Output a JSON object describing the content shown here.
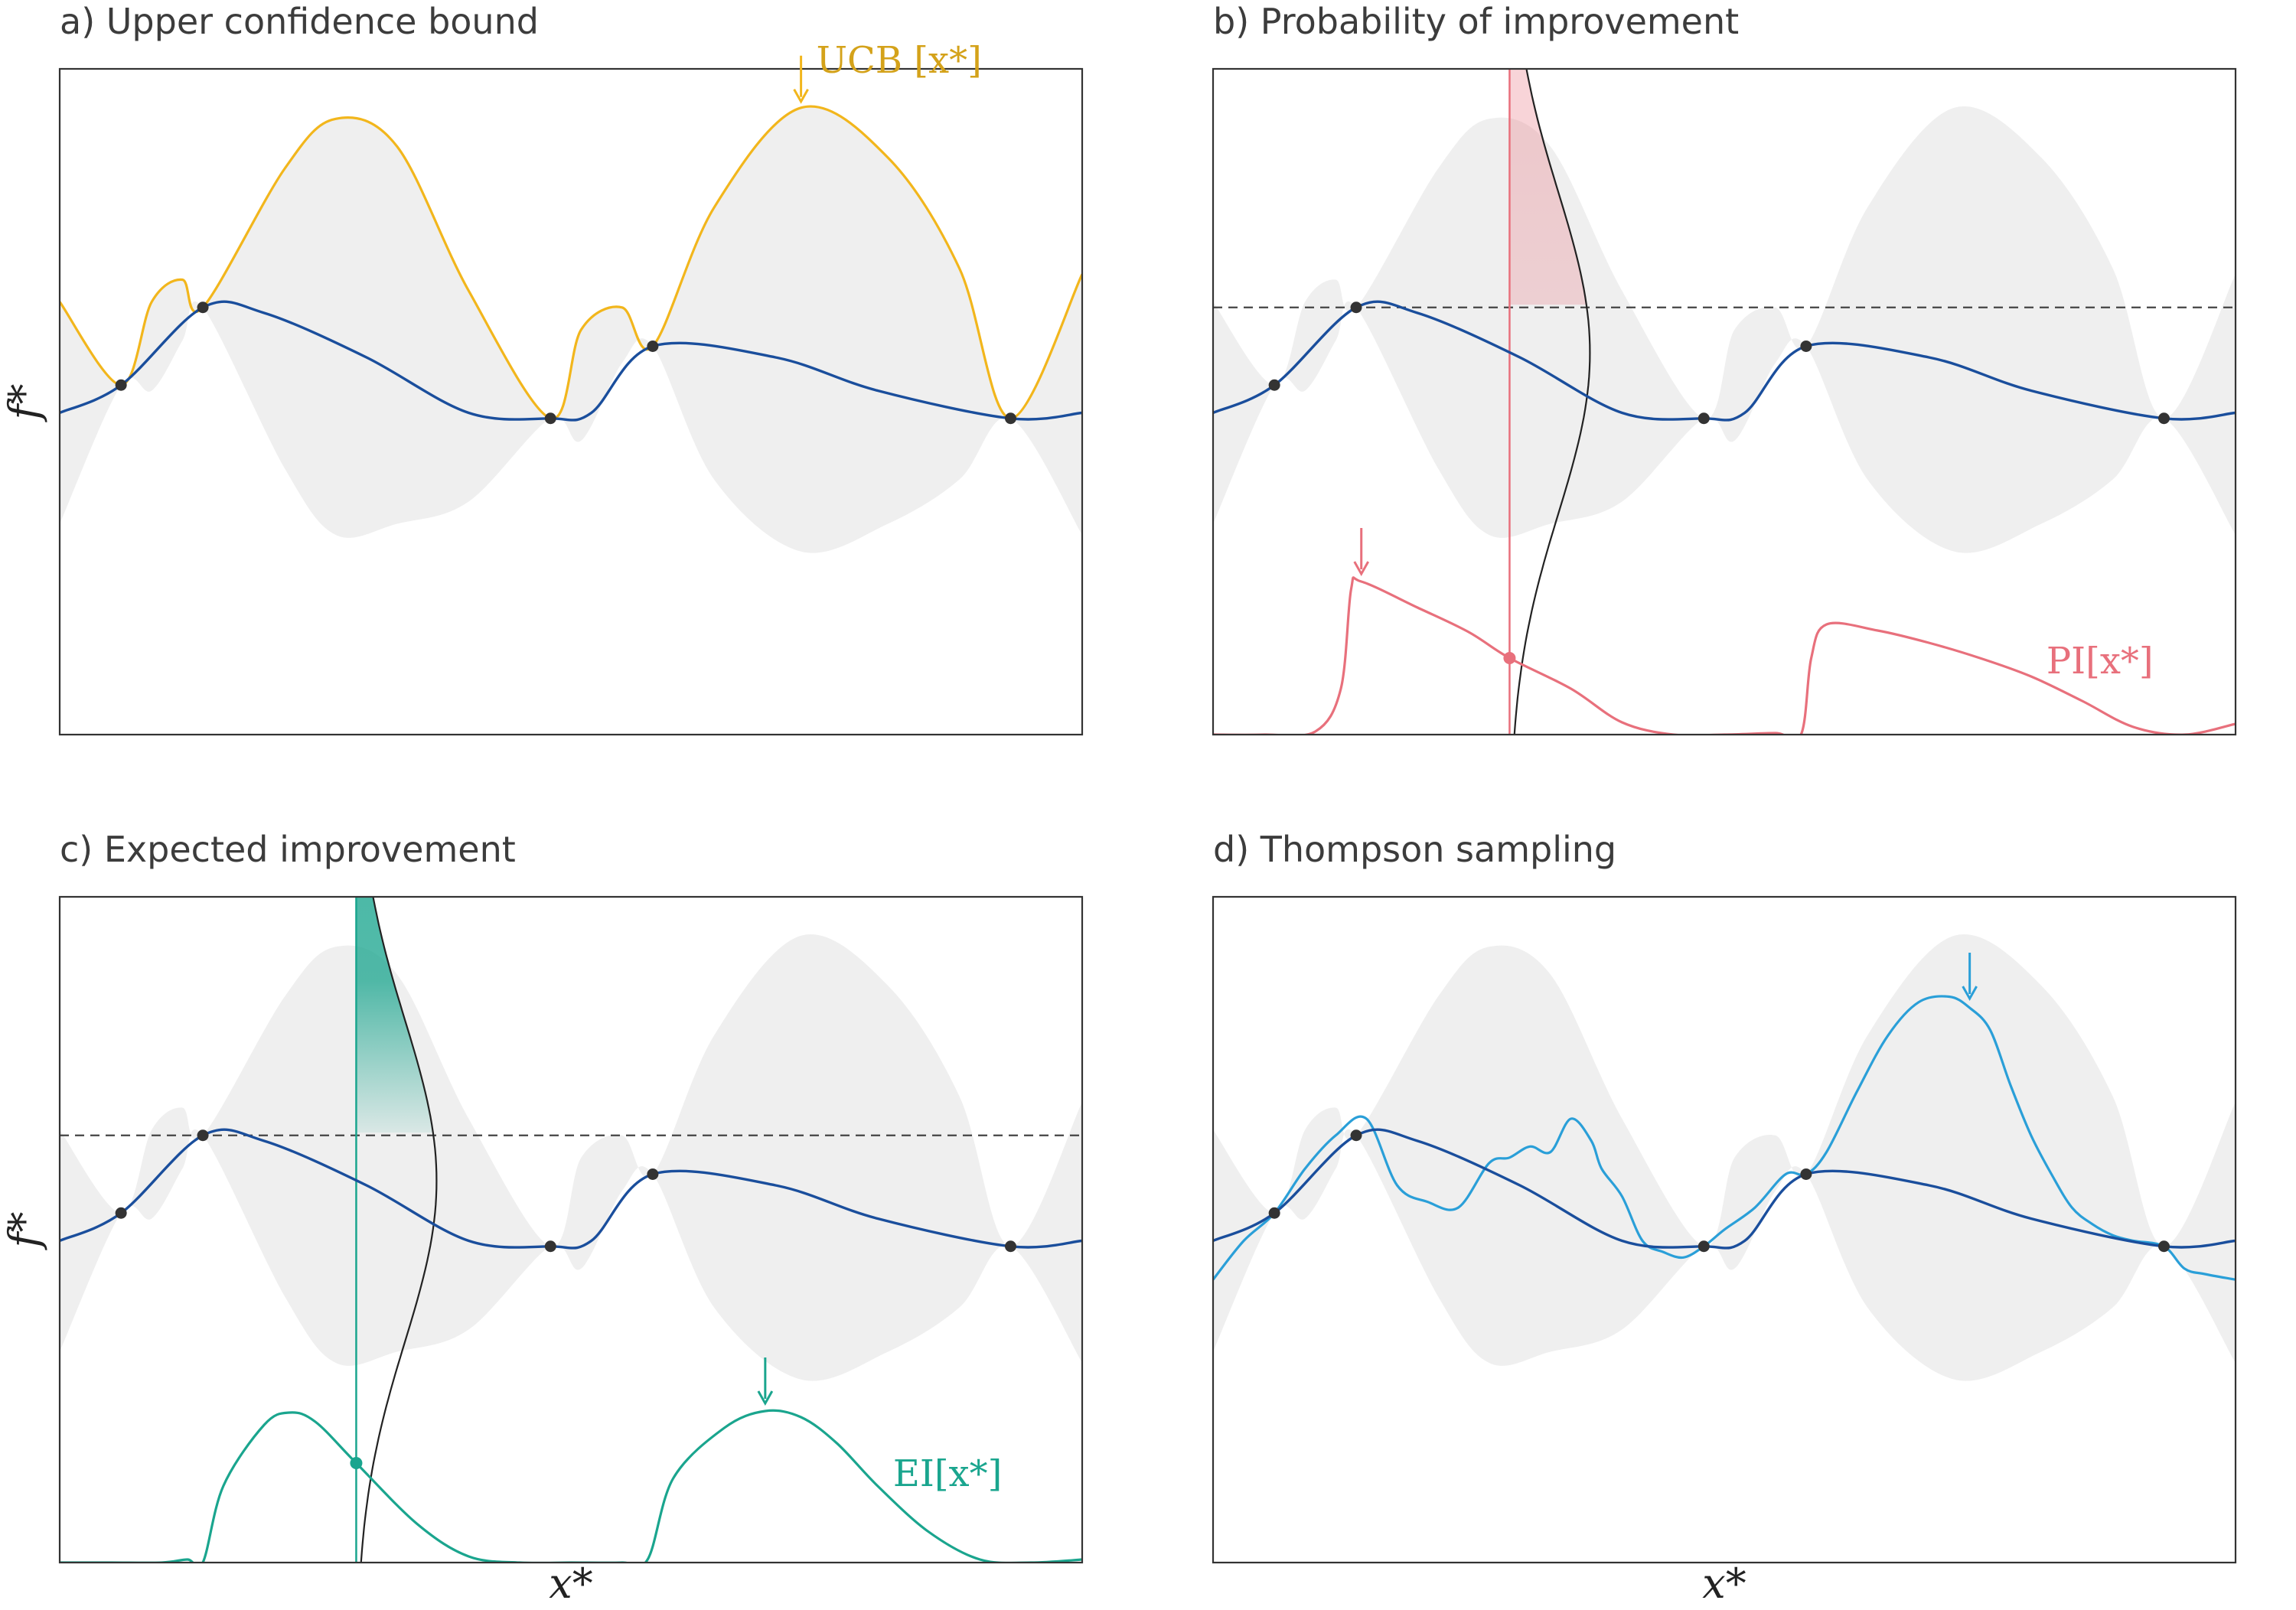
{
  "figure": {
    "y_axis_label": "f*",
    "x_axis_label": "x*"
  },
  "colors": {
    "mean": "#1a4e9c",
    "band": "#efefef",
    "ucb": "#f2b61c",
    "ucb_label": "#d4a21a",
    "pi": "#e8707c",
    "ei": "#1aa58e",
    "thompson": "#2a9fd8",
    "points": "#333333",
    "frame": "#333333"
  },
  "chart_data": [
    {
      "id": "a",
      "type": "line",
      "title": "a) Upper confidence bound",
      "xlim": [
        0,
        1
      ],
      "ylim": [
        -3,
        3
      ],
      "observations": {
        "x": [
          0.06,
          0.14,
          0.48,
          0.58,
          0.93
        ],
        "y": [
          0.15,
          0.85,
          -0.15,
          0.5,
          -0.15
        ]
      },
      "series": [
        {
          "role": "mean",
          "x": [
            0,
            0.06,
            0.14,
            0.2,
            0.3,
            0.4,
            0.48,
            0.52,
            0.58,
            0.7,
            0.8,
            0.93,
            1.0
          ],
          "y": [
            -0.1,
            0.15,
            0.85,
            0.8,
            0.4,
            -0.1,
            -0.15,
            -0.1,
            0.5,
            0.4,
            0.1,
            -0.15,
            -0.1
          ]
        },
        {
          "role": "upper",
          "x": [
            0,
            0.06,
            0.09,
            0.12,
            0.14,
            0.22,
            0.27,
            0.33,
            0.4,
            0.48,
            0.51,
            0.55,
            0.58,
            0.64,
            0.725,
            0.81,
            0.88,
            0.93,
            1.0
          ],
          "y": [
            0.9,
            0.15,
            0.9,
            1.1,
            0.85,
            2.1,
            2.55,
            2.3,
            1.0,
            -0.15,
            0.65,
            0.85,
            0.5,
            1.75,
            2.65,
            2.2,
            1.2,
            -0.15,
            1.15
          ]
        },
        {
          "role": "lower",
          "x": [
            0,
            0.06,
            0.09,
            0.12,
            0.14,
            0.22,
            0.27,
            0.33,
            0.4,
            0.48,
            0.51,
            0.55,
            0.58,
            0.64,
            0.725,
            0.81,
            0.88,
            0.93,
            1.0
          ],
          "y": [
            -1.1,
            0.15,
            0.1,
            0.55,
            0.85,
            -0.6,
            -1.2,
            -1.1,
            -0.9,
            -0.15,
            -0.35,
            0.35,
            0.5,
            -0.7,
            -1.35,
            -1.1,
            -0.7,
            -0.15,
            -1.2
          ]
        },
        {
          "role": "ucb",
          "name": "UCB [x*]",
          "x": [
            0,
            0.06,
            0.09,
            0.12,
            0.14,
            0.22,
            0.27,
            0.33,
            0.4,
            0.48,
            0.51,
            0.55,
            0.58,
            0.64,
            0.725,
            0.81,
            0.88,
            0.93,
            1.0
          ],
          "y": [
            0.9,
            0.15,
            0.9,
            1.1,
            0.85,
            2.1,
            2.55,
            2.3,
            1.0,
            -0.15,
            0.65,
            0.85,
            0.5,
            1.75,
            2.65,
            2.2,
            1.2,
            -0.15,
            1.15
          ]
        }
      ],
      "annotations": [
        {
          "type": "arrow",
          "x": 0.725,
          "label": "UCB [x*]"
        }
      ]
    },
    {
      "id": "b",
      "type": "line",
      "title": "b) Probability of improvement",
      "xlim": [
        0,
        1
      ],
      "ylim": [
        -3,
        3
      ],
      "observations": {
        "x": [
          0.06,
          0.14,
          0.48,
          0.58,
          0.93
        ],
        "y": [
          0.15,
          0.85,
          -0.15,
          0.5,
          -0.15
        ]
      },
      "best_value": 0.85,
      "series": [
        {
          "role": "mean",
          "x": [
            0,
            0.06,
            0.14,
            0.2,
            0.3,
            0.4,
            0.48,
            0.52,
            0.58,
            0.7,
            0.8,
            0.93,
            1.0
          ],
          "y": [
            -0.1,
            0.15,
            0.85,
            0.8,
            0.4,
            -0.1,
            -0.15,
            -0.1,
            0.5,
            0.4,
            0.1,
            -0.15,
            -0.1
          ]
        },
        {
          "role": "upper",
          "x": [
            0,
            0.06,
            0.09,
            0.12,
            0.14,
            0.22,
            0.27,
            0.33,
            0.4,
            0.48,
            0.51,
            0.55,
            0.58,
            0.64,
            0.725,
            0.81,
            0.88,
            0.93,
            1.0
          ],
          "y": [
            0.9,
            0.15,
            0.9,
            1.1,
            0.85,
            2.1,
            2.55,
            2.3,
            1.0,
            -0.15,
            0.65,
            0.85,
            0.5,
            1.75,
            2.65,
            2.2,
            1.2,
            -0.15,
            1.15
          ]
        },
        {
          "role": "lower",
          "x": [
            0,
            0.06,
            0.09,
            0.12,
            0.14,
            0.22,
            0.27,
            0.33,
            0.4,
            0.48,
            0.51,
            0.55,
            0.58,
            0.64,
            0.725,
            0.81,
            0.88,
            0.93,
            1.0
          ],
          "y": [
            -1.1,
            0.15,
            0.1,
            0.55,
            0.85,
            -0.6,
            -1.2,
            -1.1,
            -0.9,
            -0.15,
            -0.35,
            0.35,
            0.5,
            -0.7,
            -1.35,
            -1.1,
            -0.7,
            -0.15,
            -1.2
          ]
        },
        {
          "role": "pi",
          "name": "PI[x*]",
          "x": [
            0,
            0.05,
            0.1,
            0.125,
            0.135,
            0.145,
            0.2,
            0.25,
            0.29,
            0.35,
            0.4,
            0.45,
            0.5,
            0.55,
            0.575,
            0.585,
            0.6,
            0.65,
            0.7,
            0.75,
            0.8,
            0.85,
            0.9,
            0.95,
            1.0
          ],
          "y": [
            0,
            0,
            0.02,
            0.3,
            0.95,
            1.0,
            0.83,
            0.67,
            0.5,
            0.3,
            0.08,
            0.0,
            0.0,
            0.01,
            0.0,
            0.5,
            0.72,
            0.68,
            0.6,
            0.5,
            0.38,
            0.22,
            0.05,
            0.0,
            0.07
          ]
        }
      ],
      "query": {
        "x": 0.29,
        "sigma": 1.45
      },
      "annotations": [
        {
          "type": "arrow",
          "x": 0.145,
          "label": "PI[x*]"
        }
      ]
    },
    {
      "id": "c",
      "type": "line",
      "title": "c) Expected improvement",
      "xlim": [
        0,
        1
      ],
      "ylim": [
        -3,
        3
      ],
      "observations": {
        "x": [
          0.06,
          0.14,
          0.48,
          0.58,
          0.93
        ],
        "y": [
          0.15,
          0.85,
          -0.15,
          0.5,
          -0.15
        ]
      },
      "best_value": 0.85,
      "series": [
        {
          "role": "mean",
          "x": [
            0,
            0.06,
            0.14,
            0.2,
            0.3,
            0.4,
            0.48,
            0.52,
            0.58,
            0.7,
            0.8,
            0.93,
            1.0
          ],
          "y": [
            -0.1,
            0.15,
            0.85,
            0.8,
            0.4,
            -0.1,
            -0.15,
            -0.1,
            0.5,
            0.4,
            0.1,
            -0.15,
            -0.1
          ]
        },
        {
          "role": "upper",
          "x": [
            0,
            0.06,
            0.09,
            0.12,
            0.14,
            0.22,
            0.27,
            0.33,
            0.4,
            0.48,
            0.51,
            0.55,
            0.58,
            0.64,
            0.725,
            0.81,
            0.88,
            0.93,
            1.0
          ],
          "y": [
            0.9,
            0.15,
            0.9,
            1.1,
            0.85,
            2.1,
            2.55,
            2.3,
            1.0,
            -0.15,
            0.65,
            0.85,
            0.5,
            1.75,
            2.65,
            2.2,
            1.2,
            -0.15,
            1.15
          ]
        },
        {
          "role": "lower",
          "x": [
            0,
            0.06,
            0.09,
            0.12,
            0.14,
            0.22,
            0.27,
            0.33,
            0.4,
            0.48,
            0.51,
            0.55,
            0.58,
            0.64,
            0.725,
            0.81,
            0.88,
            0.93,
            1.0
          ],
          "y": [
            -1.1,
            0.15,
            0.1,
            0.55,
            0.85,
            -0.6,
            -1.2,
            -1.1,
            -0.9,
            -0.15,
            -0.35,
            0.35,
            0.5,
            -0.7,
            -1.35,
            -1.1,
            -0.7,
            -0.15,
            -1.2
          ]
        },
        {
          "role": "ei",
          "name": "EI[x*]",
          "x": [
            0,
            0.05,
            0.1,
            0.125,
            0.14,
            0.16,
            0.2,
            0.225,
            0.25,
            0.29,
            0.35,
            0.4,
            0.45,
            0.5,
            0.55,
            0.575,
            0.6,
            0.65,
            0.69,
            0.725,
            0.76,
            0.8,
            0.85,
            0.9,
            0.95,
            1.0
          ],
          "y": [
            0,
            0,
            0.0,
            0.02,
            0.0,
            0.5,
            0.9,
            0.98,
            0.92,
            0.65,
            0.25,
            0.04,
            0.0,
            0.0,
            0.0,
            0.02,
            0.55,
            0.88,
            0.99,
            0.95,
            0.78,
            0.5,
            0.2,
            0.02,
            0.0,
            0.02
          ]
        }
      ],
      "query": {
        "x": 0.29,
        "sigma": 1.45
      },
      "annotations": [
        {
          "type": "arrow",
          "x": 0.69,
          "label": "EI[x*]"
        }
      ]
    },
    {
      "id": "d",
      "type": "line",
      "title": "d) Thompson sampling",
      "xlim": [
        0,
        1
      ],
      "ylim": [
        -3,
        3
      ],
      "observations": {
        "x": [
          0.06,
          0.14,
          0.48,
          0.58,
          0.93
        ],
        "y": [
          0.15,
          0.85,
          -0.15,
          0.5,
          -0.15
        ]
      },
      "series": [
        {
          "role": "mean",
          "x": [
            0,
            0.06,
            0.14,
            0.2,
            0.3,
            0.4,
            0.48,
            0.52,
            0.58,
            0.7,
            0.8,
            0.93,
            1.0
          ],
          "y": [
            -0.1,
            0.15,
            0.85,
            0.8,
            0.4,
            -0.1,
            -0.15,
            -0.1,
            0.5,
            0.4,
            0.1,
            -0.15,
            -0.1
          ]
        },
        {
          "role": "upper",
          "x": [
            0,
            0.06,
            0.09,
            0.12,
            0.14,
            0.22,
            0.27,
            0.33,
            0.4,
            0.48,
            0.51,
            0.55,
            0.58,
            0.64,
            0.725,
            0.81,
            0.88,
            0.93,
            1.0
          ],
          "y": [
            0.9,
            0.15,
            0.9,
            1.1,
            0.85,
            2.1,
            2.55,
            2.3,
            1.0,
            -0.15,
            0.65,
            0.85,
            0.5,
            1.75,
            2.65,
            2.2,
            1.2,
            -0.15,
            1.15
          ]
        },
        {
          "role": "lower",
          "x": [
            0,
            0.06,
            0.09,
            0.12,
            0.14,
            0.22,
            0.27,
            0.33,
            0.4,
            0.48,
            0.51,
            0.55,
            0.58,
            0.64,
            0.725,
            0.81,
            0.88,
            0.93,
            1.0
          ],
          "y": [
            -1.1,
            0.15,
            0.1,
            0.55,
            0.85,
            -0.6,
            -1.2,
            -1.1,
            -0.9,
            -0.15,
            -0.35,
            0.35,
            0.5,
            -0.7,
            -1.35,
            -1.1,
            -0.7,
            -0.15,
            -1.2
          ]
        },
        {
          "role": "sample",
          "x": [
            0,
            0.03,
            0.06,
            0.09,
            0.12,
            0.15,
            0.18,
            0.21,
            0.24,
            0.27,
            0.29,
            0.31,
            0.33,
            0.35,
            0.37,
            0.38,
            0.4,
            0.42,
            0.44,
            0.46,
            0.48,
            0.5,
            0.53,
            0.56,
            0.58,
            0.6,
            0.63,
            0.66,
            0.69,
            0.72,
            0.74,
            0.76,
            0.78,
            0.8,
            0.82,
            0.84,
            0.86,
            0.88,
            0.9,
            0.93,
            0.95,
            0.97,
            1.0
          ],
          "y": [
            -0.45,
            -0.1,
            0.15,
            0.55,
            0.85,
            1.0,
            0.4,
            0.25,
            0.2,
            0.6,
            0.65,
            0.75,
            0.7,
            1.0,
            0.8,
            0.55,
            0.3,
            -0.1,
            -0.2,
            -0.25,
            -0.15,
            0.0,
            0.2,
            0.5,
            0.5,
            0.7,
            1.25,
            1.75,
            2.05,
            2.1,
            2.0,
            1.8,
            1.3,
            0.85,
            0.5,
            0.2,
            0.05,
            -0.05,
            -0.1,
            -0.15,
            -0.35,
            -0.4,
            -0.45
          ]
        }
      ],
      "annotations": [
        {
          "type": "arrow",
          "x": 0.74
        }
      ]
    }
  ]
}
